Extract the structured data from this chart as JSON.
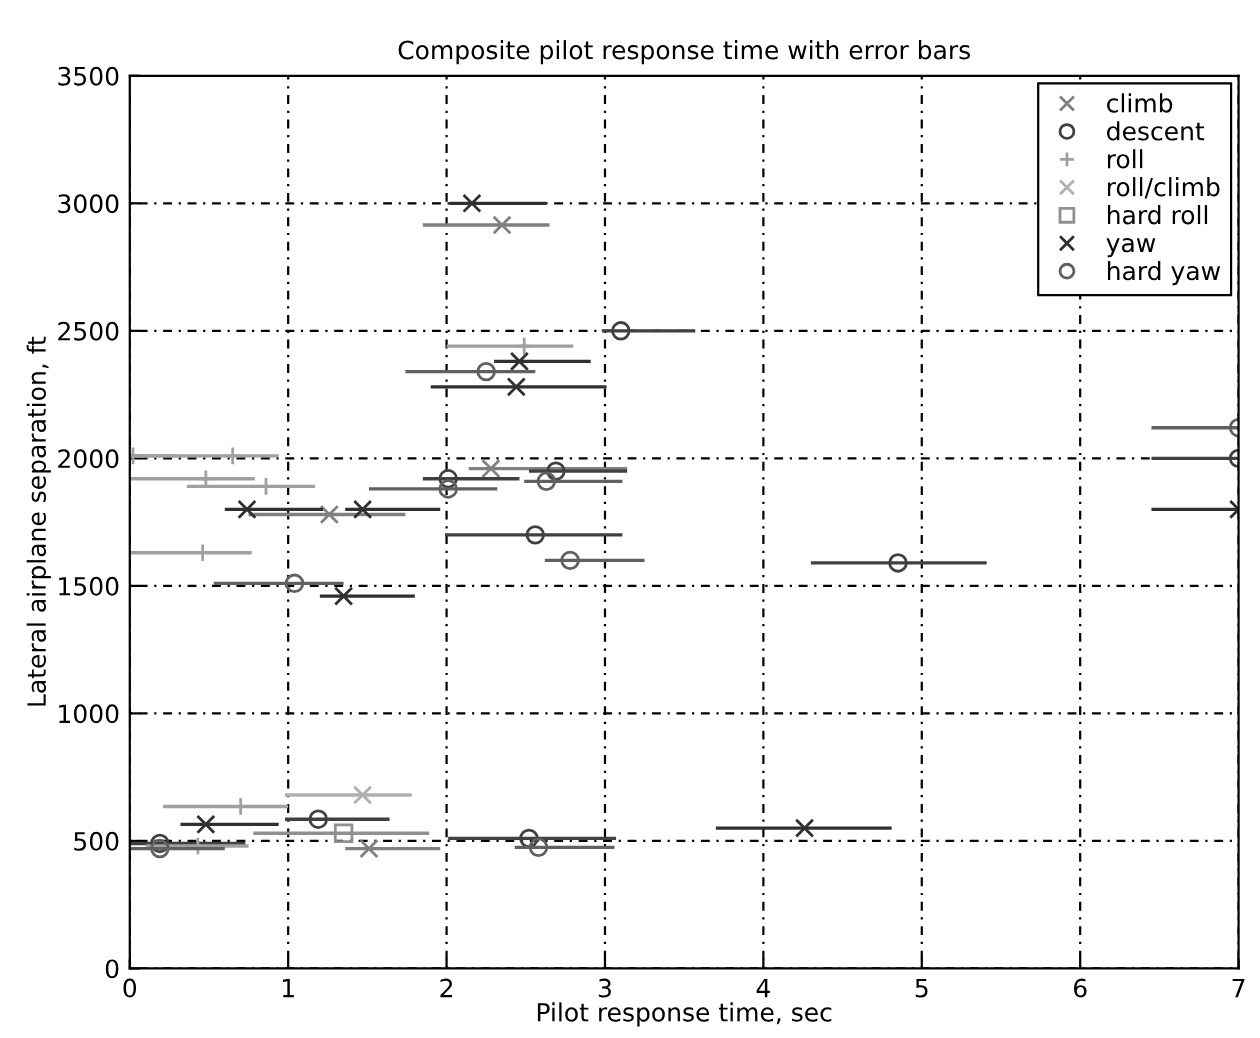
{
  "chart_data": {
    "type": "scatter",
    "title": "Composite pilot response time with error bars",
    "xlabel": "Pilot response time, sec",
    "ylabel": "Lateral airplane separation, ft",
    "xlim": [
      0,
      7
    ],
    "xticks": [
      0,
      1,
      2,
      3,
      4,
      5,
      6,
      7
    ],
    "ylim": [
      0,
      3500
    ],
    "yticks": [
      0,
      500,
      1000,
      1500,
      2000,
      2500,
      3000,
      3500
    ],
    "grid": true,
    "legend": "top right",
    "series": [
      {
        "name": "climb",
        "color": "#808080",
        "marker": "cross",
        "x": [
          2.35,
          1.26,
          2.28,
          1.51
        ],
        "values": [
          2915,
          1780,
          1960,
          470
        ],
        "xerrors": [
          [
            1.85,
            2.65
          ],
          [
            0.75,
            1.74
          ],
          [
            2.14,
            3.14
          ],
          [
            1.36,
            1.96
          ]
        ]
      },
      {
        "name": "descent",
        "color": "#404040",
        "marker": "circle",
        "x": [
          3.1,
          2.01,
          2.69,
          2.56,
          4.85,
          1.19,
          2.52,
          0.19,
          7.0
        ],
        "values": [
          2500,
          1920,
          1950,
          1700,
          1590,
          585,
          510,
          490,
          2000
        ],
        "xerrors": [
          [
            2.98,
            3.57
          ],
          [
            1.85,
            2.46
          ],
          [
            2.52,
            3.14
          ],
          [
            1.99,
            3.11
          ],
          [
            4.3,
            5.41
          ],
          [
            0.98,
            1.64
          ],
          [
            2.01,
            3.07
          ],
          [
            0.0,
            0.73
          ],
          [
            6.45,
            7.0
          ]
        ]
      },
      {
        "name": "roll",
        "color": "#a0a0a0",
        "marker": "plus",
        "x": [
          2.49,
          0.02,
          0.65,
          0.48,
          0.86,
          0.46,
          0.7,
          0.43
        ],
        "values": [
          2440,
          2010,
          2010,
          1920,
          1890,
          1630,
          635,
          480
        ],
        "xerrors": [
          [
            2.0,
            2.8
          ],
          [
            0.0,
            0.3
          ],
          [
            0.0,
            0.94
          ],
          [
            0.0,
            0.79
          ],
          [
            0.36,
            1.17
          ],
          [
            0.0,
            0.77
          ],
          [
            0.21,
            1.0
          ],
          [
            0.1,
            0.75
          ]
        ]
      },
      {
        "name": "roll/climb",
        "color": "#b0b0b0",
        "marker": "cross",
        "x": [
          1.47
        ],
        "values": [
          680
        ],
        "xerrors": [
          [
            0.98,
            1.78
          ]
        ]
      },
      {
        "name": "hard roll",
        "color": "#909090",
        "marker": "square",
        "x": [
          1.35
        ],
        "values": [
          530
        ],
        "xerrors": [
          [
            0.78,
            1.89
          ]
        ]
      },
      {
        "name": "yaw",
        "color": "#303030",
        "marker": "cross",
        "x": [
          2.16,
          2.46,
          2.44,
          0.74,
          1.47,
          1.35,
          0.48,
          4.26,
          7.0
        ],
        "values": [
          3000,
          2380,
          2280,
          1800,
          1800,
          1460,
          565,
          550,
          1800
        ],
        "xerrors": [
          [
            2.02,
            2.63
          ],
          [
            2.3,
            2.91
          ],
          [
            1.9,
            3.01
          ],
          [
            0.6,
            1.22
          ],
          [
            1.36,
            1.96
          ],
          [
            1.2,
            1.8
          ],
          [
            0.32,
            0.94
          ],
          [
            3.7,
            4.81
          ],
          [
            6.45,
            7.0
          ]
        ]
      },
      {
        "name": "hard yaw",
        "color": "#606060",
        "marker": "circle",
        "x": [
          2.25,
          2.01,
          2.63,
          2.78,
          1.04,
          2.58,
          0.19,
          7.0
        ],
        "values": [
          2340,
          1880,
          1910,
          1600,
          1510,
          475,
          470,
          2120
        ],
        "xerrors": [
          [
            1.74,
            2.56
          ],
          [
            1.51,
            2.32
          ],
          [
            2.49,
            3.11
          ],
          [
            2.62,
            3.25
          ],
          [
            0.53,
            1.35
          ],
          [
            2.43,
            3.06
          ],
          [
            0.0,
            0.6
          ],
          [
            6.45,
            7.0
          ]
        ]
      }
    ]
  }
}
